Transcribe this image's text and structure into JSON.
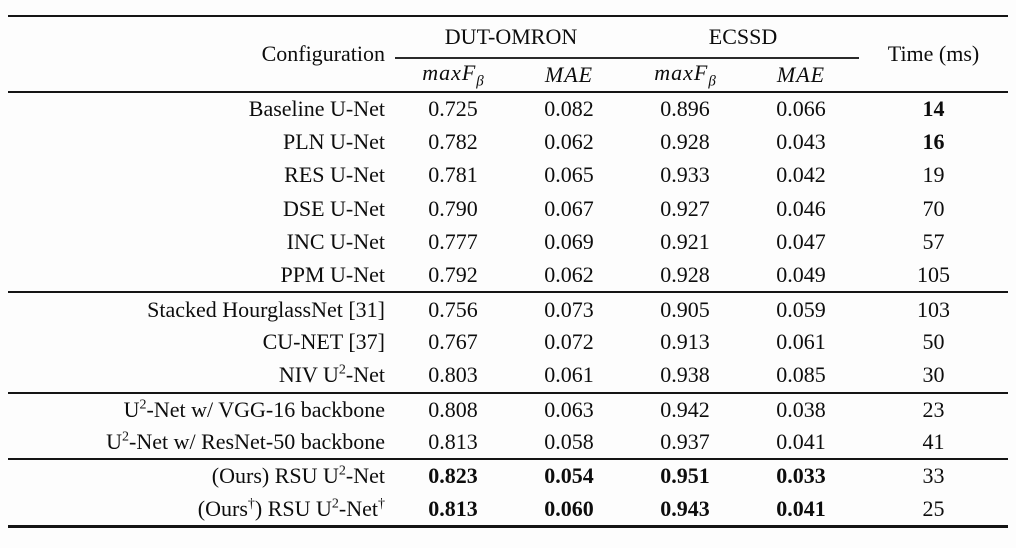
{
  "table": {
    "header": {
      "config": "Configuration",
      "groups": [
        {
          "label": "DUT-OMRON"
        },
        {
          "label": "ECSSD"
        }
      ],
      "metrics": [
        "maxF~β~",
        "MAE",
        "maxF~β~",
        "MAE"
      ],
      "time": "Time (ms)"
    },
    "groups": [
      {
        "rows": [
          {
            "config": "Baseline U-Net",
            "values": [
              "0.725",
              "0.082",
              "0.896",
              "0.066",
              "14"
            ],
            "bold": [
              4
            ]
          },
          {
            "config": "PLN U-Net",
            "values": [
              "0.782",
              "0.062",
              "0.928",
              "0.043",
              "16"
            ],
            "bold": [
              4
            ]
          },
          {
            "config": "RES U-Net",
            "values": [
              "0.781",
              "0.065",
              "0.933",
              "0.042",
              "19"
            ],
            "bold": []
          },
          {
            "config": "DSE U-Net",
            "values": [
              "0.790",
              "0.067",
              "0.927",
              "0.046",
              "70"
            ],
            "bold": []
          },
          {
            "config": "INC U-Net",
            "values": [
              "0.777",
              "0.069",
              "0.921",
              "0.047",
              "57"
            ],
            "bold": []
          },
          {
            "config": "PPM U-Net",
            "values": [
              "0.792",
              "0.062",
              "0.928",
              "0.049",
              "105"
            ],
            "bold": []
          }
        ]
      },
      {
        "rows": [
          {
            "config": "Stacked HourglassNet [31]",
            "values": [
              "0.756",
              "0.073",
              "0.905",
              "0.059",
              "103"
            ],
            "bold": []
          },
          {
            "config": "CU-NET [37]",
            "values": [
              "0.767",
              "0.072",
              "0.913",
              "0.061",
              "50"
            ],
            "bold": []
          },
          {
            "config": "NIV U^2^-Net",
            "values": [
              "0.803",
              "0.061",
              "0.938",
              "0.085",
              "30"
            ],
            "bold": []
          }
        ]
      },
      {
        "rows": [
          {
            "config": "U^2^-Net w/ VGG-16 backbone",
            "values": [
              "0.808",
              "0.063",
              "0.942",
              "0.038",
              "23"
            ],
            "bold": []
          },
          {
            "config": "U^2^-Net w/ ResNet-50 backbone",
            "values": [
              "0.813",
              "0.058",
              "0.937",
              "0.041",
              "41"
            ],
            "bold": []
          }
        ]
      },
      {
        "rows": [
          {
            "config": "(Ours) RSU U^2^-Net",
            "values": [
              "0.823",
              "0.054",
              "0.951",
              "0.033",
              "33"
            ],
            "bold": [
              0,
              1,
              2,
              3
            ]
          },
          {
            "config": "(Ours^†^) RSU U^2^-Net^†^",
            "values": [
              "0.813",
              "0.060",
              "0.943",
              "0.041",
              "25"
            ],
            "bold": [
              0,
              1,
              2,
              3
            ]
          }
        ]
      }
    ]
  }
}
